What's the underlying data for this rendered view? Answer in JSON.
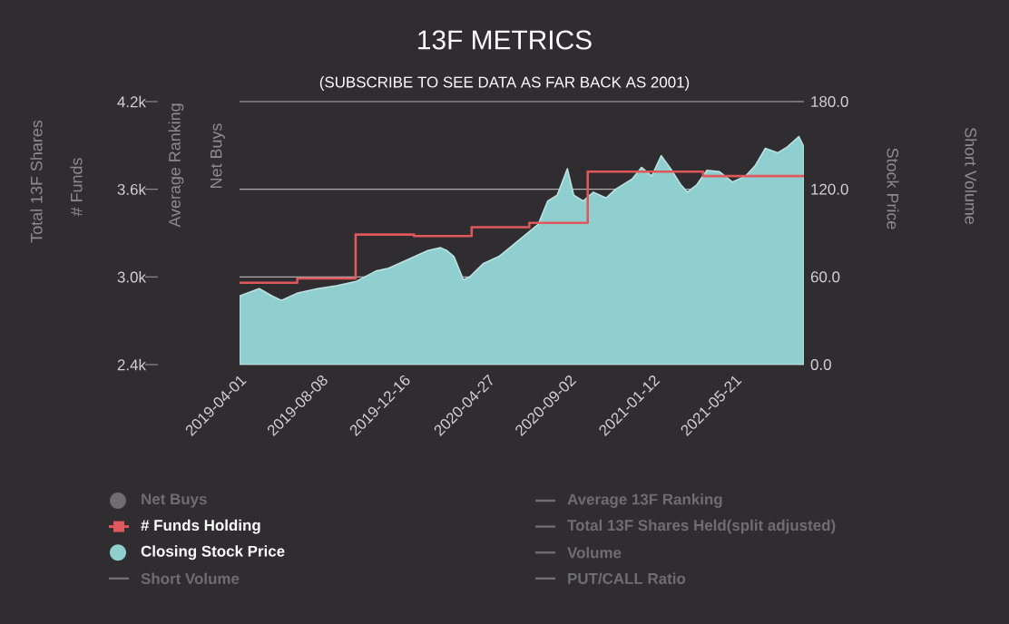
{
  "chart_data": {
    "type": "line",
    "title": "13F METRICS",
    "subtitle": "(SUBSCRIBE TO SEE DATA AS FAR BACK AS 2001)",
    "ylabel": "# Funds",
    "y2label": "Stock Price",
    "annotations": [
      "Total 13F Shares",
      "Average Ranking",
      "Net Buys",
      "Short Volume",
      "Net Buys",
      "Short Volume",
      "Average 13F Ranking",
      "Total 13F Shares Held(split adjusted)",
      "Volume",
      "PUT/CALL Ratio"
    ],
    "xlim": [
      "2019-04-01",
      "2021-09-07"
    ],
    "xticks": [
      "2019-04-01",
      "2019-08-08",
      "2019-12-16",
      "2020-04-27",
      "2020-09-02",
      "2021-01-12",
      "2021-05-21"
    ],
    "ylim": [
      2400,
      4200
    ],
    "yticks": [
      {
        "value": 2400,
        "label": "2.4k"
      },
      {
        "value": 3000,
        "label": "3.0k"
      },
      {
        "value": 3600,
        "label": "3.6k"
      },
      {
        "value": 4200,
        "label": "4.2k"
      }
    ],
    "y2lim": [
      0,
      180
    ],
    "y2ticks": [
      {
        "value": 0,
        "label": "0.0"
      },
      {
        "value": 60,
        "label": "60.0"
      },
      {
        "value": 120,
        "label": "120.0"
      },
      {
        "value": 180,
        "label": "180.0"
      }
    ],
    "grid": "y",
    "legend": "bottom",
    "series": [
      {
        "name": "Closing Stock Price",
        "type": "area",
        "axis": "y2",
        "color": "#8fcfcf",
        "x": [
          "2019-04-01",
          "2019-05-02",
          "2019-05-22",
          "2019-06-06",
          "2019-07-02",
          "2019-08-02",
          "2019-09-01",
          "2019-10-02",
          "2019-11-02",
          "2019-11-22",
          "2019-12-23",
          "2020-01-23",
          "2020-02-12",
          "2020-02-22",
          "2020-03-04",
          "2020-03-19",
          "2020-03-29",
          "2020-04-19",
          "2020-05-14",
          "2020-06-14",
          "2020-07-15",
          "2020-07-30",
          "2020-08-14",
          "2020-08-30",
          "2020-09-09",
          "2020-09-24",
          "2020-10-10",
          "2020-10-30",
          "2020-11-14",
          "2020-12-10",
          "2020-12-25",
          "2021-01-10",
          "2021-01-25",
          "2021-02-09",
          "2021-02-25",
          "2021-03-07",
          "2021-03-22",
          "2021-04-07",
          "2021-04-27",
          "2021-05-17",
          "2021-06-07",
          "2021-06-22",
          "2021-07-08",
          "2021-07-28",
          "2021-08-12",
          "2021-08-30",
          "2021-09-07"
        ],
        "values": [
          47,
          52,
          47,
          44,
          49,
          52,
          54,
          57,
          64,
          66,
          72,
          78,
          80,
          78,
          74,
          58,
          60,
          69,
          74,
          85,
          96,
          112,
          116,
          134,
          116,
          112,
          118,
          114,
          120,
          127,
          135,
          129,
          143,
          134,
          123,
          118,
          123,
          133,
          132,
          125,
          129,
          136,
          148,
          145,
          149,
          156,
          149
        ]
      },
      {
        "name": "# Funds Holding",
        "type": "step",
        "color": "#e0585b",
        "x": [
          "2019-04-01",
          "2019-07-01",
          "2019-10-01",
          "2020-01-01",
          "2020-04-01",
          "2020-07-01",
          "2020-10-01",
          "2021-04-01",
          "2021-09-07"
        ],
        "values": [
          2960,
          2990,
          3290,
          3280,
          3340,
          3370,
          3720,
          3690,
          3690
        ]
      }
    ]
  }
}
